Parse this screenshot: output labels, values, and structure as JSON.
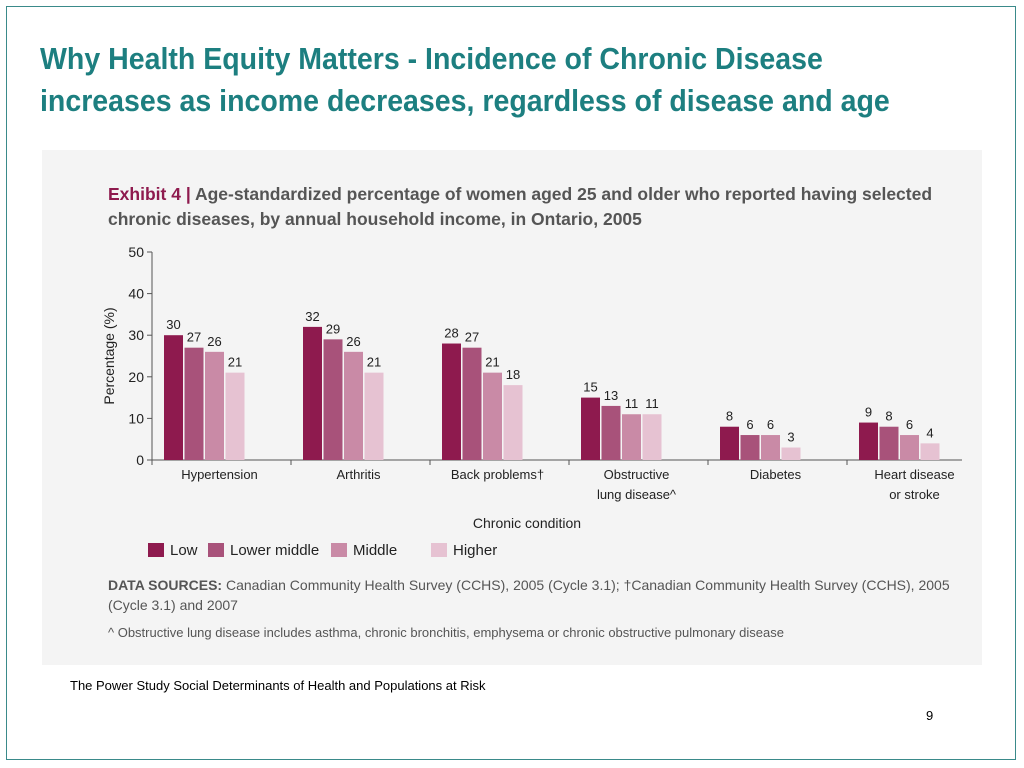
{
  "slide": {
    "title": "Why Health Equity Matters - Incidence of Chronic Disease increases as income decreases, regardless of disease and age",
    "source": "The Power Study Social Determinants of Health and Populations at Risk",
    "page_number": "9"
  },
  "exhibit": {
    "label": "Exhibit 4",
    "separator": "|",
    "caption": "Age-standardized percentage of women aged 25 and older who reported having selected chronic diseases, by annual household income, in Ontario, 2005",
    "data_sources_label": "DATA SOURCES:",
    "data_sources_text": "Canadian Community Health Survey (CCHS), 2005 (Cycle 3.1); †Canadian Community Health Survey (CCHS), 2005 (Cycle 3.1) and 2007",
    "footnote": "^ Obstructive lung disease includes asthma, chronic bronchitis, emphysema or chronic obstructive pulmonary disease"
  },
  "chart_data": {
    "type": "bar",
    "categories": [
      [
        "Hypertension"
      ],
      [
        "Arthritis"
      ],
      [
        "Back problems†"
      ],
      [
        "Obstructive",
        "lung disease^"
      ],
      [
        "Diabetes"
      ],
      [
        "Heart disease",
        "or stroke"
      ]
    ],
    "series": [
      {
        "name": "Low",
        "color": "#8e1a4e",
        "values": [
          30,
          32,
          28,
          15,
          8,
          9
        ]
      },
      {
        "name": "Lower middle",
        "color": "#a8527a",
        "values": [
          27,
          29,
          27,
          13,
          6,
          8
        ]
      },
      {
        "name": "Middle",
        "color": "#c98aa6",
        "values": [
          26,
          26,
          21,
          11,
          6,
          6
        ]
      },
      {
        "name": "Higher",
        "color": "#e6c2d2",
        "values": [
          21,
          21,
          18,
          11,
          3,
          4
        ]
      }
    ],
    "xlabel": "Chronic condition",
    "ylabel": "Percentage (%)",
    "ylim": [
      0,
      50
    ],
    "yticks": [
      0,
      10,
      20,
      30,
      40,
      50
    ],
    "grid": false,
    "legend_position": "bottom-left"
  }
}
